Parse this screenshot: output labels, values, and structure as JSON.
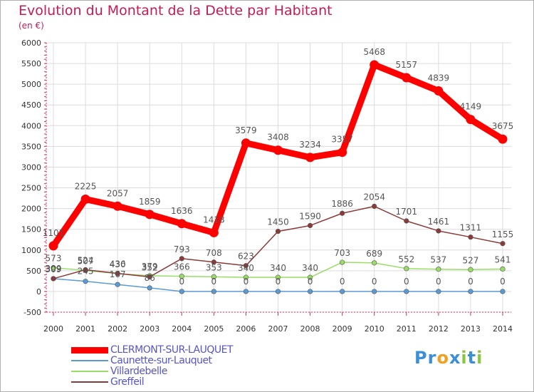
{
  "title": "Evolution du Montant de la Dette par Habitant",
  "subtitle": "(en €)",
  "brand": {
    "text": "Proxiti",
    "letters": [
      {
        "ch": "P",
        "color": "#3a8fd6"
      },
      {
        "ch": "r",
        "color": "#3a8fd6"
      },
      {
        "ch": "o",
        "color": "#f0a020"
      },
      {
        "ch": "x",
        "color": "#3a8fd6"
      },
      {
        "ch": "i",
        "color": "#8ac640"
      },
      {
        "ch": "t",
        "color": "#3a8fd6"
      },
      {
        "ch": "i",
        "color": "#8ac640"
      }
    ]
  },
  "chart_data": {
    "type": "line",
    "x": [
      "2000",
      "2001",
      "2002",
      "2003",
      "2004",
      "2005",
      "2006",
      "2007",
      "2008",
      "2009",
      "2010",
      "2011",
      "2012",
      "2013",
      "2014"
    ],
    "ylim": [
      -500,
      6000
    ],
    "yticks": [
      "-500",
      "0",
      "500",
      "1000",
      "1500",
      "2000",
      "2500",
      "3000",
      "3500",
      "4000",
      "4500",
      "5000",
      "5500",
      "6000"
    ],
    "grid": true,
    "series": [
      {
        "name": "CLERMONT-SUR-LAUQUET",
        "color": "#ff0000",
        "values": [
          1101,
          2225,
          2057,
          1859,
          1636,
          1418,
          3579,
          3408,
          3234,
          3357,
          5468,
          5157,
          4839,
          4149,
          3675
        ],
        "labels": [
          "1101",
          "2225",
          "2057",
          "1859",
          "1636",
          "1418",
          "3579",
          "3408",
          "3234",
          "3357",
          "5468",
          "5157",
          "4839",
          "4149",
          "3675"
        ]
      },
      {
        "name": "Caunette-sur-Lauquet",
        "color": "#5b9bd5",
        "values": [
          309,
          245,
          167,
          86,
          0,
          0,
          0,
          0,
          0,
          0,
          0,
          0,
          0,
          0,
          0
        ],
        "labels": [
          "309",
          "245",
          "167",
          "86",
          "0",
          "0",
          "0",
          "0",
          "0",
          "0",
          "0",
          "0",
          "0",
          "0",
          "0"
        ]
      },
      {
        "name": "Villardebelle",
        "color": "#99dd66",
        "values": [
          573,
          507,
          430,
          379,
          366,
          353,
          340,
          340,
          340,
          703,
          689,
          552,
          537,
          527,
          541
        ],
        "labels": [
          "573",
          "507",
          "430",
          "379",
          "366",
          "353",
          "340",
          "340",
          "340",
          "703",
          "689",
          "552",
          "537",
          "527",
          "541"
        ]
      },
      {
        "name": "Greffeil",
        "color": "#8b3a3a",
        "values": [
          309,
          524,
          436,
          352,
          793,
          708,
          623,
          1450,
          1590,
          1886,
          2054,
          1701,
          1461,
          1311,
          1155
        ],
        "labels": [
          "309",
          "524",
          "436",
          "352",
          "793",
          "708",
          "623",
          "1450",
          "1590",
          "1886",
          "2054",
          "1701",
          "1461",
          "1311",
          "1155"
        ]
      }
    ]
  }
}
